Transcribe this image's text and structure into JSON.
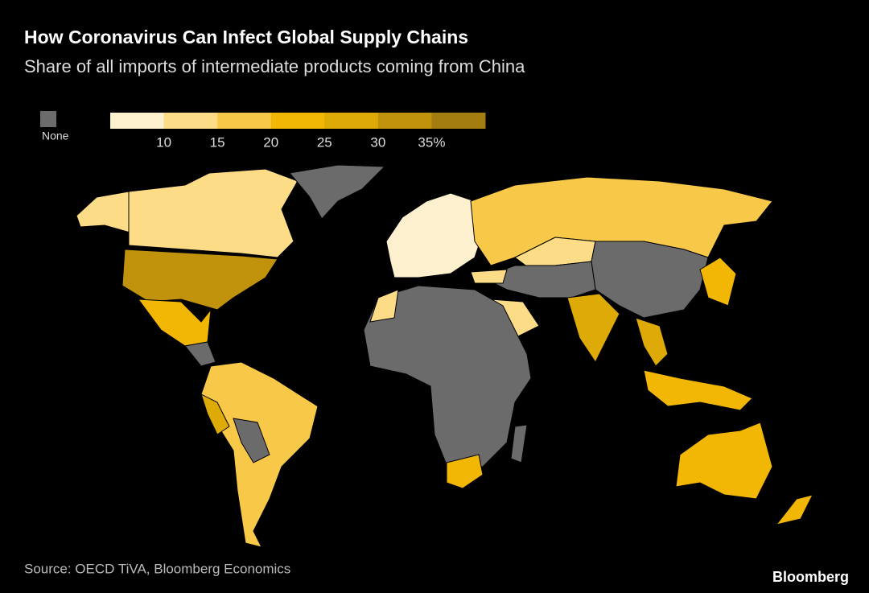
{
  "header": {
    "title": "How Coronavirus Can Infect Global Supply Chains",
    "subtitle": "Share of all imports of intermediate products coming from China"
  },
  "legend": {
    "none_label": "None",
    "none_color": "#6b6b6b",
    "colors": [
      "#fdf0cf",
      "#fcdc87",
      "#f8c948",
      "#f2b705",
      "#ddaa07",
      "#c1920c",
      "#a37d10"
    ],
    "ticks": [
      "10",
      "15",
      "20",
      "25",
      "30",
      "35%"
    ]
  },
  "footer": {
    "source": "Source: OECD TiVA, Bloomberg Economics",
    "brand": "Bloomberg"
  }
}
